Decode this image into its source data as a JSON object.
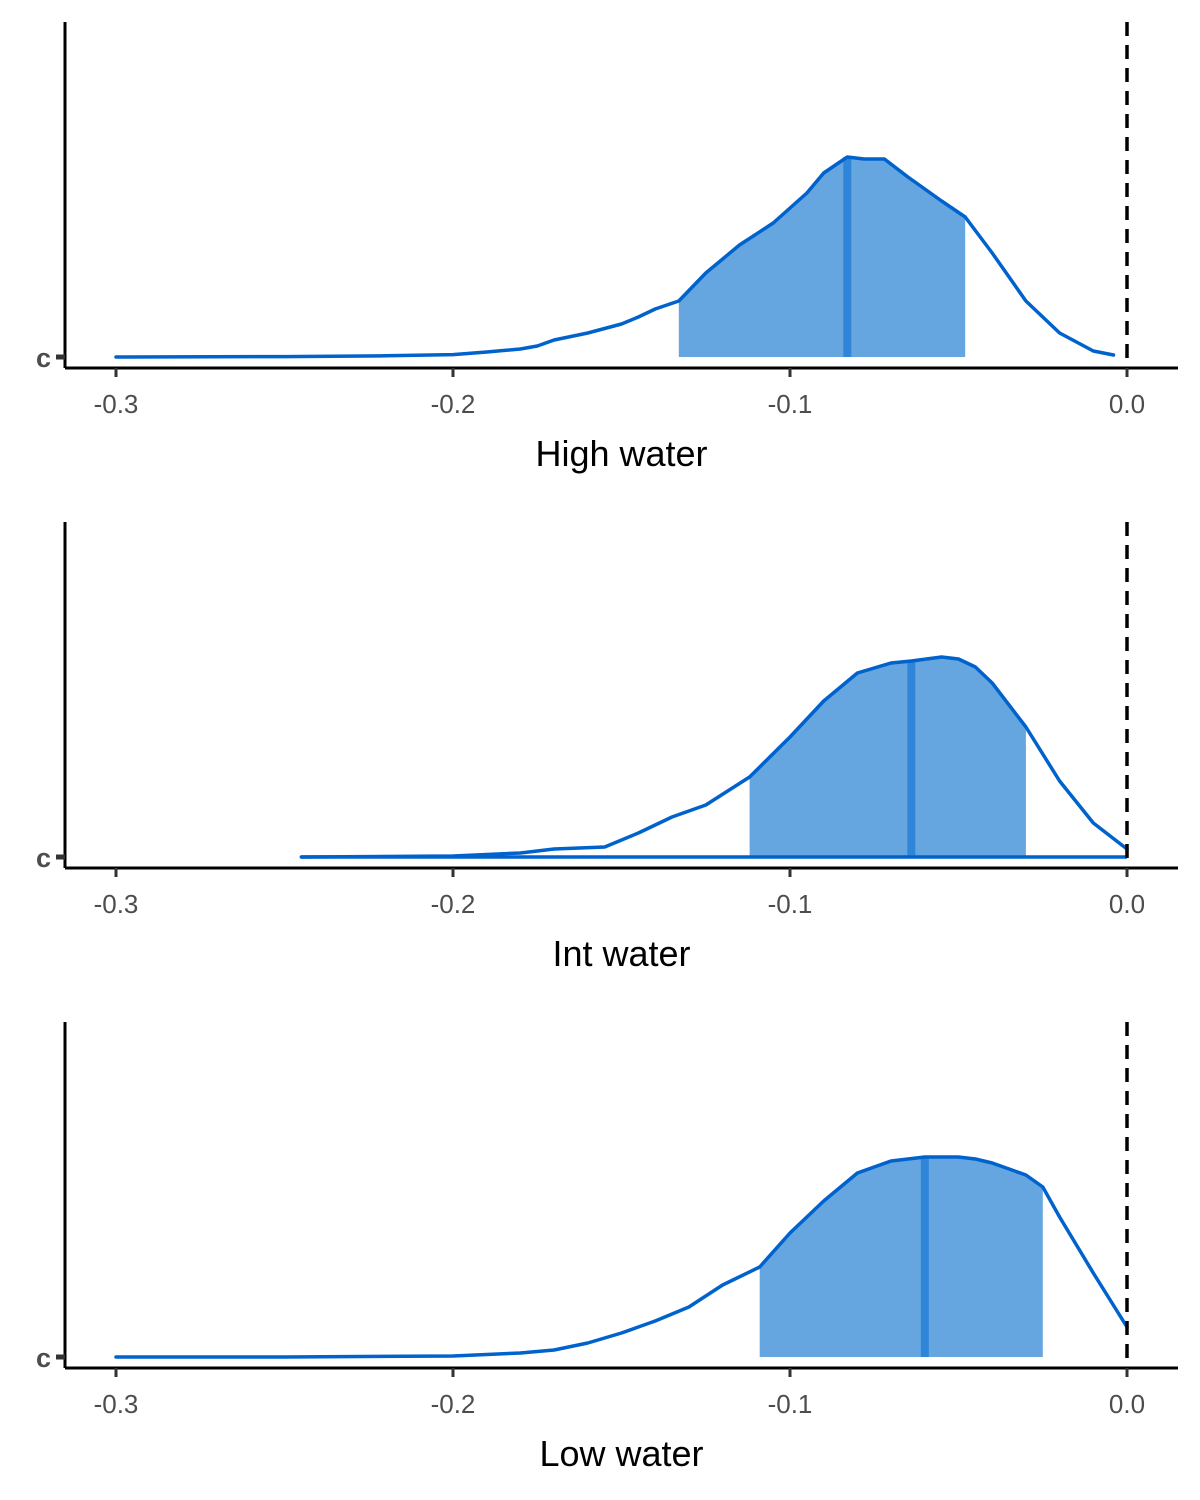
{
  "chart_data": [
    {
      "type": "area",
      "xlabel": "High water",
      "ylabel": "",
      "y_categories": [
        "c"
      ],
      "xlim": [
        -0.315,
        0.015
      ],
      "x_ticks": [
        -0.3,
        -0.2,
        -0.1,
        0.0
      ],
      "x_tick_labels": [
        "-0.3",
        "-0.2",
        "-0.1",
        "0.0"
      ],
      "reference_line": 0.0,
      "median": -0.083,
      "interval": [
        -0.133,
        -0.048
      ],
      "density": {
        "x": [
          -0.3,
          -0.25,
          -0.22,
          -0.2,
          -0.19,
          -0.18,
          -0.175,
          -0.17,
          -0.16,
          -0.15,
          -0.145,
          -0.14,
          -0.133,
          -0.125,
          -0.115,
          -0.105,
          -0.095,
          -0.09,
          -0.083,
          -0.078,
          -0.072,
          -0.065,
          -0.055,
          -0.048,
          -0.04,
          -0.03,
          -0.02,
          -0.01,
          -0.004
        ],
        "y": [
          0.0,
          0.002,
          0.006,
          0.012,
          0.025,
          0.04,
          0.055,
          0.085,
          0.12,
          0.165,
          0.2,
          0.24,
          0.28,
          0.42,
          0.56,
          0.67,
          0.82,
          0.92,
          1.0,
          0.99,
          0.99,
          0.9,
          0.78,
          0.7,
          0.52,
          0.28,
          0.12,
          0.03,
          0.01
        ]
      }
    },
    {
      "type": "area",
      "xlabel": "Int water",
      "ylabel": "",
      "y_categories": [
        "c"
      ],
      "xlim": [
        -0.315,
        0.015
      ],
      "x_ticks": [
        -0.3,
        -0.2,
        -0.1,
        0.0
      ],
      "x_tick_labels": [
        "-0.3",
        "-0.2",
        "-0.1",
        "0.0"
      ],
      "reference_line": 0.0,
      "median": -0.064,
      "interval": [
        -0.112,
        -0.03
      ],
      "density": {
        "x": [
          -0.245,
          -0.2,
          -0.18,
          -0.17,
          -0.155,
          -0.145,
          -0.135,
          -0.125,
          -0.112,
          -0.1,
          -0.09,
          -0.08,
          -0.07,
          -0.064,
          -0.055,
          -0.05,
          -0.045,
          -0.04,
          -0.03,
          -0.02,
          -0.01,
          0.0
        ],
        "y": [
          0.0,
          0.005,
          0.02,
          0.04,
          0.05,
          0.12,
          0.2,
          0.26,
          0.4,
          0.6,
          0.78,
          0.92,
          0.97,
          0.98,
          1.0,
          0.99,
          0.95,
          0.87,
          0.65,
          0.38,
          0.17,
          0.04
        ]
      }
    },
    {
      "type": "area",
      "xlabel": "Low water",
      "ylabel": "",
      "y_categories": [
        "c"
      ],
      "xlim": [
        -0.315,
        0.015
      ],
      "x_ticks": [
        -0.3,
        -0.2,
        -0.1,
        0.0
      ],
      "x_tick_labels": [
        "-0.3",
        "-0.2",
        "-0.1",
        "0.0"
      ],
      "reference_line": 0.0,
      "median": -0.06,
      "interval": [
        -0.109,
        -0.025
      ],
      "density": {
        "x": [
          -0.3,
          -0.25,
          -0.2,
          -0.18,
          -0.17,
          -0.16,
          -0.15,
          -0.14,
          -0.13,
          -0.12,
          -0.109,
          -0.1,
          -0.09,
          -0.08,
          -0.07,
          -0.06,
          -0.055,
          -0.05,
          -0.045,
          -0.04,
          -0.035,
          -0.03,
          -0.025,
          -0.02,
          -0.01,
          0.0
        ],
        "y": [
          0.0,
          0.0,
          0.005,
          0.02,
          0.035,
          0.07,
          0.12,
          0.18,
          0.25,
          0.36,
          0.45,
          0.62,
          0.78,
          0.92,
          0.98,
          1.0,
          1.0,
          1.0,
          0.99,
          0.97,
          0.94,
          0.91,
          0.85,
          0.7,
          0.42,
          0.15
        ]
      }
    }
  ],
  "colors": {
    "density_line": "#0062cc",
    "interval_fill": "#65a6e0",
    "median_line": "#2f86d8",
    "axis": "#000000",
    "tick_text": "#4d4d4d",
    "reference_line": "#000000"
  }
}
